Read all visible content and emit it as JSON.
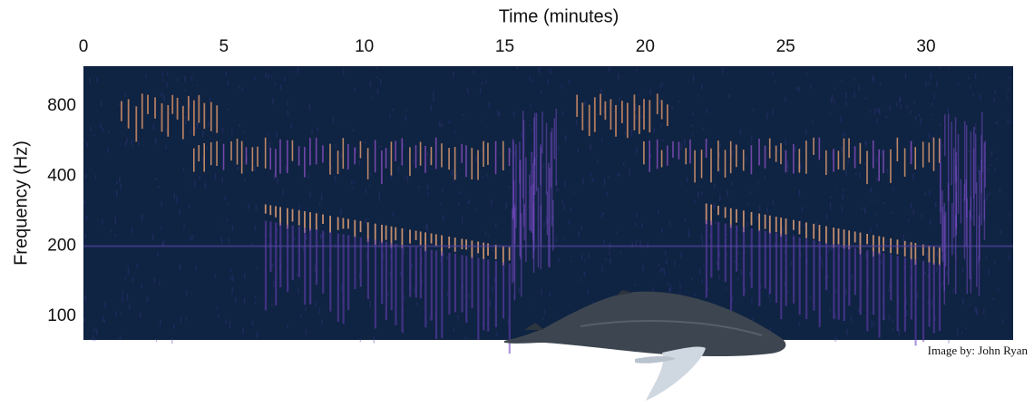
{
  "chart_data": {
    "type": "spectrogram",
    "xlabel": "Time (minutes)",
    "ylabel": "Frequency (Hz)",
    "xlim": [
      0,
      33.1
    ],
    "xticks": [
      0,
      5,
      10,
      15,
      20,
      25,
      30
    ],
    "ylim": [
      79,
      1190
    ],
    "yticks": [
      100,
      200,
      400,
      800
    ],
    "yscale": "log",
    "credit": "Image by: John Ryan"
  }
}
